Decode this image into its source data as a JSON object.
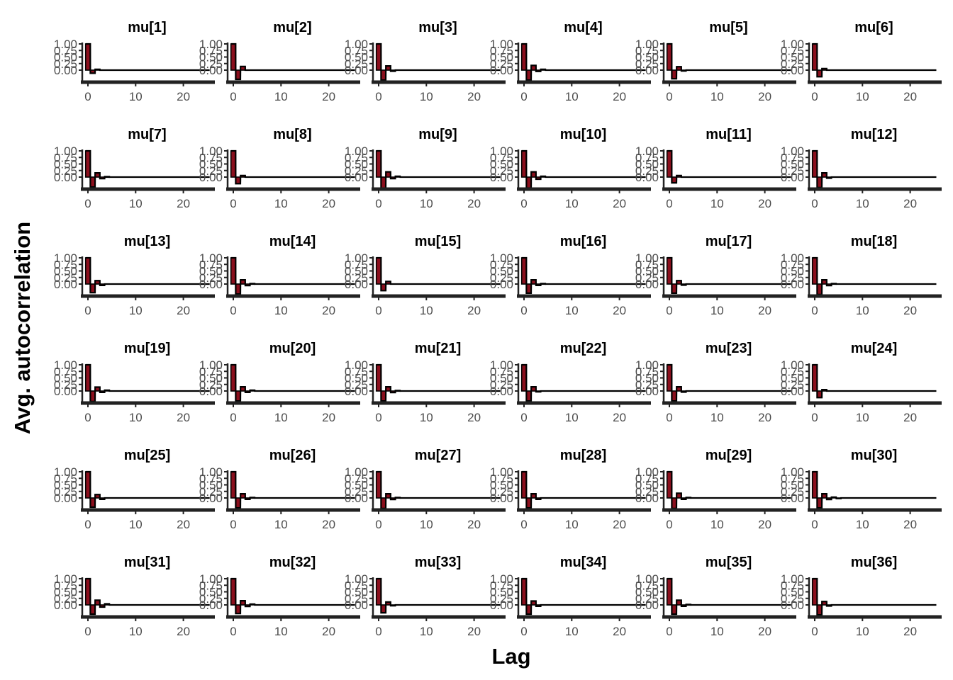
{
  "chart_data": {
    "type": "bar",
    "layout": "facet-grid-6x6",
    "xlabel": "Lag",
    "ylabel": "Avg. autocorrelation",
    "x_ticks": [
      0,
      10,
      20
    ],
    "y_ticks": [
      "0.00",
      "0.25",
      "0.50",
      "0.75",
      "1.00"
    ],
    "xlim": [
      -1,
      26
    ],
    "ylim": [
      -0.45,
      1.0
    ],
    "colors": {
      "bar_fill": "#8b0f1d",
      "bar_stroke": "#000000",
      "axis": "#222222",
      "tick_text": "#4d4d4d"
    },
    "panels": [
      {
        "title": "mu[1]",
        "values": [
          1.0,
          -0.12,
          0.03,
          0.0
        ]
      },
      {
        "title": "mu[2]",
        "values": [
          1.0,
          -0.35,
          0.14,
          0.0
        ]
      },
      {
        "title": "mu[3]",
        "values": [
          1.0,
          -0.38,
          0.16,
          -0.04,
          0.0
        ]
      },
      {
        "title": "mu[4]",
        "values": [
          1.0,
          -0.38,
          0.18,
          -0.05,
          0.03,
          0.0
        ]
      },
      {
        "title": "mu[5]",
        "values": [
          1.0,
          -0.33,
          0.13,
          -0.03,
          0.0
        ]
      },
      {
        "title": "mu[6]",
        "values": [
          1.0,
          -0.25,
          0.06,
          0.0
        ]
      },
      {
        "title": "mu[7]",
        "values": [
          1.0,
          -0.38,
          0.16,
          -0.06,
          0.02,
          0.0
        ]
      },
      {
        "title": "mu[8]",
        "values": [
          1.0,
          -0.25,
          0.06,
          0.0
        ]
      },
      {
        "title": "mu[9]",
        "values": [
          1.0,
          -0.43,
          0.2,
          -0.06,
          0.03,
          0.0
        ]
      },
      {
        "title": "mu[10]",
        "values": [
          1.0,
          -0.42,
          0.2,
          -0.08,
          0.03,
          0.0
        ]
      },
      {
        "title": "mu[11]",
        "values": [
          1.0,
          -0.22,
          0.06,
          0.0
        ]
      },
      {
        "title": "mu[12]",
        "values": [
          1.0,
          -0.4,
          0.16,
          -0.04,
          0.0
        ]
      },
      {
        "title": "mu[13]",
        "values": [
          1.0,
          -0.33,
          0.13,
          -0.05,
          0.0
        ]
      },
      {
        "title": "mu[14]",
        "values": [
          1.0,
          -0.38,
          0.16,
          -0.06,
          0.02,
          0.0
        ]
      },
      {
        "title": "mu[15]",
        "values": [
          1.0,
          -0.25,
          0.1,
          0.0
        ]
      },
      {
        "title": "mu[16]",
        "values": [
          1.0,
          -0.35,
          0.16,
          -0.05,
          0.02,
          0.0
        ]
      },
      {
        "title": "mu[17]",
        "values": [
          1.0,
          -0.35,
          0.13,
          -0.04,
          0.0
        ]
      },
      {
        "title": "mu[18]",
        "values": [
          1.0,
          -0.4,
          0.16,
          -0.06,
          0.02,
          0.0
        ]
      },
      {
        "title": "mu[19]",
        "values": [
          1.0,
          -0.4,
          0.15,
          -0.05,
          0.03,
          0.0
        ]
      },
      {
        "title": "mu[20]",
        "values": [
          1.0,
          -0.38,
          0.16,
          -0.05,
          0.03,
          0.0
        ]
      },
      {
        "title": "mu[21]",
        "values": [
          1.0,
          -0.38,
          0.16,
          -0.06,
          0.02,
          0.0
        ]
      },
      {
        "title": "mu[22]",
        "values": [
          1.0,
          -0.38,
          0.16,
          -0.03,
          0.0
        ]
      },
      {
        "title": "mu[23]",
        "values": [
          1.0,
          -0.38,
          0.16,
          -0.04,
          0.0
        ]
      },
      {
        "title": "mu[24]",
        "values": [
          1.0,
          -0.25,
          0.05,
          0.0
        ]
      },
      {
        "title": "mu[25]",
        "values": [
          1.0,
          -0.35,
          0.13,
          -0.05,
          0.0
        ]
      },
      {
        "title": "mu[26]",
        "values": [
          1.0,
          -0.38,
          0.16,
          -0.05,
          0.02,
          0.0
        ]
      },
      {
        "title": "mu[27]",
        "values": [
          1.0,
          -0.4,
          0.16,
          -0.06,
          0.02,
          0.0
        ]
      },
      {
        "title": "mu[28]",
        "values": [
          1.0,
          -0.38,
          0.16,
          -0.05,
          0.0
        ]
      },
      {
        "title": "mu[29]",
        "values": [
          1.0,
          -0.4,
          0.18,
          -0.05,
          0.02,
          0.0
        ]
      },
      {
        "title": "mu[30]",
        "values": [
          1.0,
          -0.38,
          0.16,
          -0.06,
          0.03,
          -0.02,
          0.0
        ]
      },
      {
        "title": "mu[31]",
        "values": [
          1.0,
          -0.35,
          0.18,
          -0.08,
          0.04,
          0.0
        ]
      },
      {
        "title": "mu[32]",
        "values": [
          1.0,
          -0.33,
          0.16,
          -0.06,
          0.03,
          0.0
        ]
      },
      {
        "title": "mu[33]",
        "values": [
          1.0,
          -0.3,
          0.11,
          -0.03,
          0.0
        ]
      },
      {
        "title": "mu[34]",
        "values": [
          1.0,
          -0.35,
          0.15,
          -0.05,
          0.0
        ]
      },
      {
        "title": "mu[35]",
        "values": [
          1.0,
          -0.35,
          0.18,
          -0.05,
          0.02,
          0.0
        ]
      },
      {
        "title": "mu[36]",
        "values": [
          1.0,
          -0.38,
          0.13,
          -0.04,
          0.0
        ]
      }
    ]
  }
}
